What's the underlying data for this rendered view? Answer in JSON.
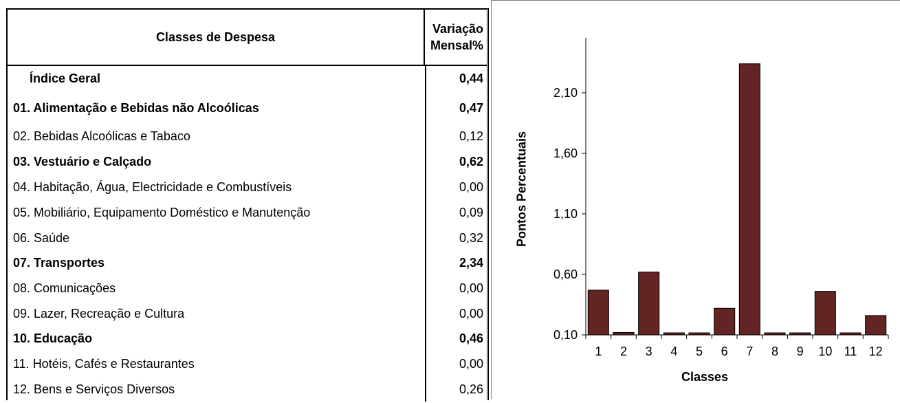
{
  "table": {
    "header_class": "Classes de Despesa",
    "header_var_line1": "Variação",
    "header_var_line2": "Mensal%",
    "rows": [
      {
        "name": "Índice Geral",
        "value": "0,44"
      },
      {
        "name": "01. Alimentação e Bebidas não Alcoólicas",
        "value": "0,47"
      },
      {
        "name": "02. Bebidas Alcoólicas e Tabaco",
        "value": "0,12"
      },
      {
        "name": "03. Vestuário e Calçado",
        "value": "0,62"
      },
      {
        "name": "04. Habitação, Água, Electricidade e Combustíveis",
        "value": "0,00"
      },
      {
        "name": "05. Mobiliário, Equipamento Doméstico e Manutenção",
        "value": "0,09"
      },
      {
        "name": "06. Saúde",
        "value": "0,32"
      },
      {
        "name": "07. Transportes",
        "value": "2,34"
      },
      {
        "name": "08. Comunicações",
        "value": "0,00"
      },
      {
        "name": "09. Lazer, Recreação e Cultura",
        "value": "0,00"
      },
      {
        "name": "10. Educação",
        "value": "0,46"
      },
      {
        "name": "11. Hotéis, Cafés e Restaurantes",
        "value": "0,00"
      },
      {
        "name": "12. Bens e Serviços Diversos",
        "value": "0,26"
      }
    ]
  },
  "chart_data": {
    "type": "bar",
    "categories": [
      "1",
      "2",
      "3",
      "4",
      "5",
      "6",
      "7",
      "8",
      "9",
      "10",
      "11",
      "12"
    ],
    "values": [
      0.47,
      0.12,
      0.62,
      0.0,
      0.09,
      0.32,
      2.34,
      0.0,
      0.0,
      0.46,
      0.0,
      0.26
    ],
    "title": "",
    "xlabel": "Classes",
    "ylabel": "Pontos Percentuais",
    "ylim": [
      0.1,
      2.4
    ],
    "yticks": [
      "0,10",
      "0,60",
      "1,10",
      "1,60",
      "2,10"
    ],
    "bar_color": "#632523",
    "grid": false
  }
}
